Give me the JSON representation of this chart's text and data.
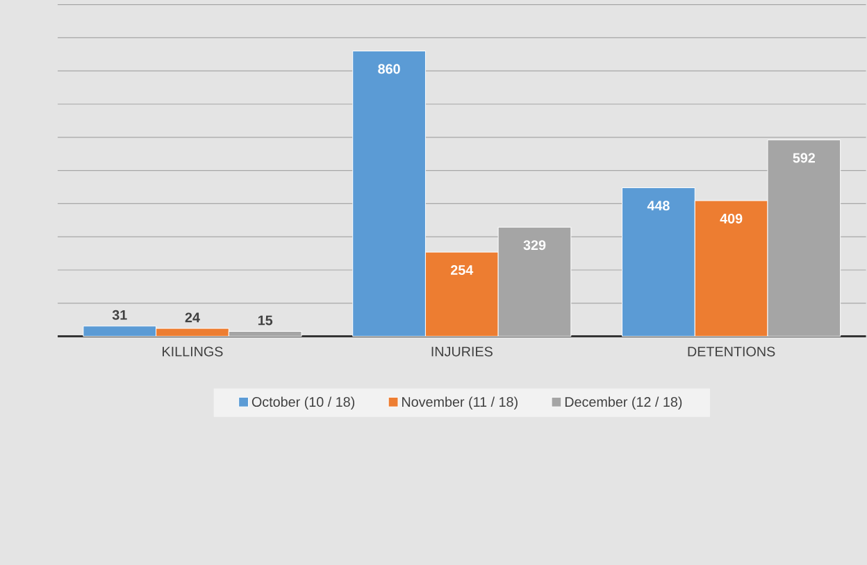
{
  "chart_data": {
    "type": "bar",
    "categories": [
      "KILLINGS",
      "INJURIES",
      "DETENTIONS"
    ],
    "series": [
      {
        "name": "October (10 / 18)",
        "color": "#5b9bd5",
        "values": [
          31,
          860,
          448
        ]
      },
      {
        "name": "November (11 / 18)",
        "color": "#ed7d31",
        "values": [
          24,
          254,
          409
        ]
      },
      {
        "name": "December (12 / 18)",
        "color": "#a5a5a5",
        "values": [
          15,
          329,
          592
        ]
      }
    ],
    "ylim": [
      0,
      1000
    ],
    "yticks": [
      {
        "value": 0,
        "label": null
      },
      {
        "value": 100,
        "label": null
      },
      {
        "value": 200,
        "label": null
      },
      {
        "value": 300,
        "label": null
      },
      {
        "value": 400,
        "label": null
      },
      {
        "value": 500,
        "label": null
      },
      {
        "value": 600,
        "label": null
      },
      {
        "value": 700,
        "label": null
      },
      {
        "value": 800,
        "label": null
      },
      {
        "value": 900,
        "label": null
      },
      {
        "value": 1000,
        "label": null
      }
    ],
    "tick_labels": "x",
    "grid": "y",
    "legend": "bottom",
    "data_labels": true
  }
}
